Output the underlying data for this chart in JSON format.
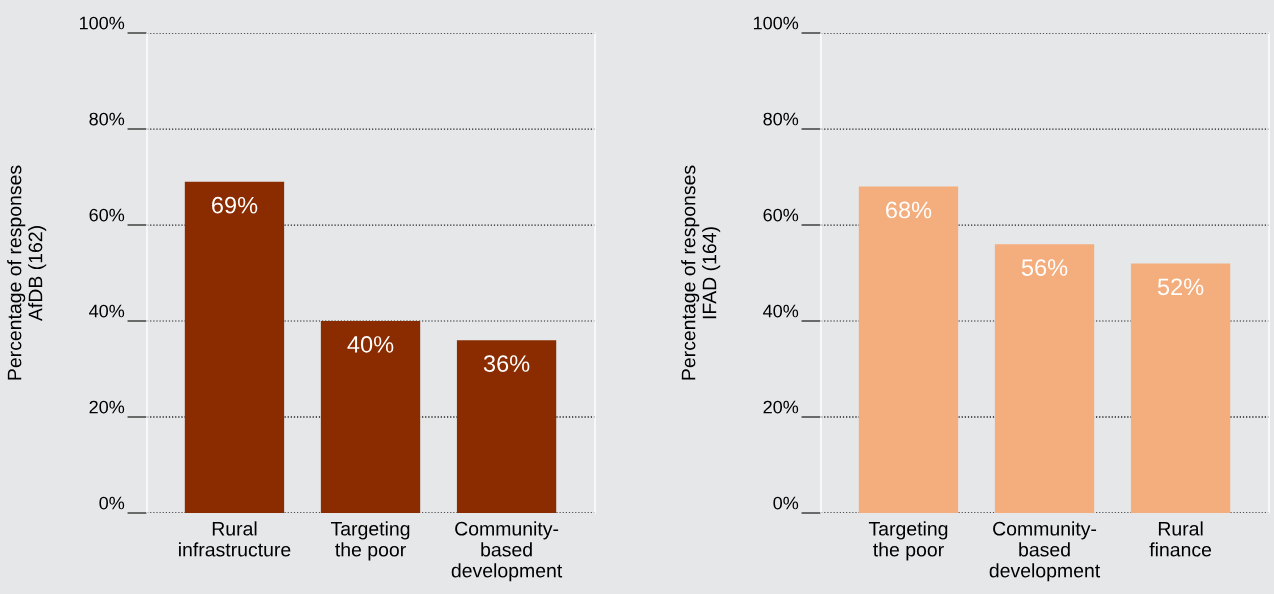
{
  "chart_data": [
    {
      "type": "bar",
      "ylabel": "Percentage of responses\nAfDB (162)",
      "categories": [
        "Rural\ninfrastructure",
        "Targeting\nthe poor",
        "Community-\nbased\ndevelopment"
      ],
      "values": [
        69,
        40,
        36
      ],
      "value_labels": [
        "69%",
        "40%",
        "36%"
      ],
      "color": "#8b2c00",
      "ylim": [
        0,
        100
      ],
      "yticks": [
        {
          "value": 0,
          "label": "0%"
        },
        {
          "value": 20,
          "label": "20%"
        },
        {
          "value": 40,
          "label": "40%"
        },
        {
          "value": 60,
          "label": "60%"
        },
        {
          "value": 80,
          "label": "80%"
        },
        {
          "value": 100,
          "label": "100%"
        }
      ],
      "grid": "y"
    },
    {
      "type": "bar",
      "ylabel": "Percentage of responses\nIFAD (164)",
      "categories": [
        "Targeting\nthe poor",
        "Community-\nbased\ndevelopment",
        "Rural\nfinance"
      ],
      "values": [
        68,
        56,
        52
      ],
      "value_labels": [
        "68%",
        "56%",
        "52%"
      ],
      "color": "#f4ad7c",
      "ylim": [
        0,
        100
      ],
      "yticks": [
        {
          "value": 0,
          "label": "0%"
        },
        {
          "value": 20,
          "label": "20%"
        },
        {
          "value": 40,
          "label": "40%"
        },
        {
          "value": 60,
          "label": "60%"
        },
        {
          "value": 80,
          "label": "80%"
        },
        {
          "value": 100,
          "label": "100%"
        }
      ],
      "grid": "y"
    }
  ]
}
